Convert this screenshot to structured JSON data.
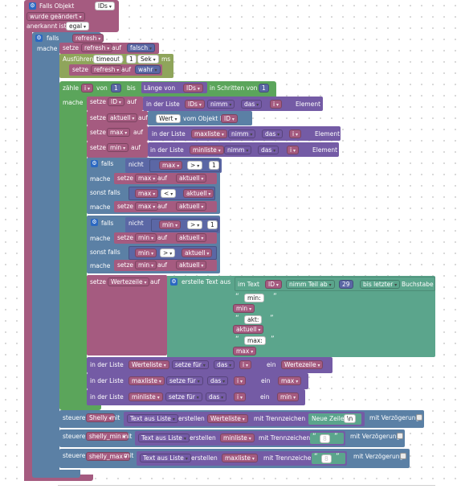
{
  "colors": {
    "event": "#a55b80",
    "control": "#5b80a5",
    "logic": "#5b67a5",
    "variable": "#a55b80",
    "timeout": "#8fa55b",
    "loop": "#5ba55b",
    "list": "#745ba5",
    "text": "#5ba58c",
    "value_yellow": "#f0e4a0",
    "value_red": "#e8b4b4"
  },
  "blocks": {
    "trigger": {
      "title": "Falls Objekt",
      "ids": "IDs",
      "changed": "wurde geändert",
      "ack_prefix": "anerkannt ist",
      "ack_value": "egal"
    },
    "if_refresh": {
      "keyword": "falls",
      "var": "refresh",
      "do": "mache"
    },
    "set_refresh_false": {
      "set": "setze",
      "var": "refresh",
      "to": "auf",
      "value": "falsch"
    },
    "timeout": {
      "run": "Ausführen",
      "name": "timeout",
      "in": "in",
      "amount": "1",
      "unit": "Sek",
      "ms": "ms"
    },
    "set_refresh_true": {
      "set": "setze",
      "var": "refresh",
      "to": "auf",
      "value": "wahr"
    },
    "count": {
      "count": "zähle",
      "var": "i",
      "from": "von",
      "start": "1",
      "to": "bis",
      "length_label": "Länge von",
      "list": "IDs",
      "step_label": "in Schritten von",
      "step": "1",
      "do": "mache"
    },
    "set_ID": {
      "set": "setze",
      "var": "ID",
      "to": "auf",
      "in_list": "in der Liste",
      "list": "IDs",
      "take": "nimm",
      "which": "das",
      "idx": "i",
      "element": "Element"
    },
    "set_aktuell": {
      "set": "setze",
      "var": "aktuell",
      "to": "auf",
      "value_label": "Wert",
      "object_label": "vom Objekt ID",
      "id": "ID"
    },
    "set_max": {
      "set": "setze",
      "var": "max",
      "to": "auf",
      "in_list": "in der Liste",
      "list": "maxliste",
      "take": "nimm",
      "which": "das",
      "idx": "i",
      "element": "Element"
    },
    "set_min": {
      "set": "setze",
      "var": "min",
      "to": "auf",
      "in_list": "in der Liste",
      "list": "minliste",
      "take": "nimm",
      "which": "das",
      "idx": "i",
      "element": "Element"
    },
    "if_max": {
      "keyword": "falls",
      "not": "nicht",
      "var": "max",
      "op": ">",
      "num": "1",
      "do": "mache",
      "set_var": "max",
      "set_val": "aktuell",
      "elseif": "sonst falls",
      "cmp_a": "max",
      "cmp_op": "<",
      "cmp_b": "aktuell",
      "do2": "mache",
      "set2_var": "max",
      "set2_val": "aktuell",
      "set": "setze",
      "to": "auf"
    },
    "if_min": {
      "keyword": "falls",
      "not": "nicht",
      "var": "min",
      "op": ">",
      "num": "1",
      "do": "mache",
      "set_var": "min",
      "set_val": "aktuell",
      "elseif": "sonst falls",
      "cmp_a": "min",
      "cmp_op": ">",
      "cmp_b": "aktuell",
      "do2": "mache",
      "set2_var": "min",
      "set2_val": "aktuell",
      "set": "setze",
      "to": "auf"
    },
    "set_wertezeile": {
      "set": "setze",
      "var": "Wertezeile",
      "to": "auf",
      "create": "erstelle Text aus",
      "in_text": "im Text",
      "id": "ID",
      "take_part": "nimm Teil ab",
      "from_n": "29",
      "until": "bis letzter",
      "char": "Buchstabe",
      "s_min": "min:",
      "v_min": "min",
      "s_akt": "akt:",
      "v_akt": "aktuell",
      "s_max": "max:",
      "v_max": "max"
    },
    "list_set_1": {
      "in_list": "in der Liste",
      "list": "Werteliste",
      "set_for": "setze für",
      "which": "das",
      "idx": "i",
      "a": "ein",
      "value": "Wertezeile"
    },
    "list_set_2": {
      "in_list": "in der Liste",
      "list": "maxliste",
      "set_for": "setze für",
      "which": "das",
      "idx": "i",
      "a": "ein",
      "value": "max"
    },
    "list_set_3": {
      "in_list": "in der Liste",
      "list": "minliste",
      "set_for": "setze für",
      "which": "das",
      "idx": "i",
      "a": "ein",
      "value": "min"
    },
    "control_1": {
      "control": "steuere",
      "target": "Shelly",
      "with": "mit",
      "text_from_list": "Text aus Liste",
      "create": "erstellen",
      "list": "Werteliste",
      "separator": "mit Trennzeichen",
      "sep_value": "Neue Zeile",
      "sep_code": "\\n",
      "delay": "mit Verzögerung"
    },
    "control_2": {
      "control": "steuere",
      "target": "shelly_min",
      "with": "mit",
      "text_from_list": "Text aus Liste",
      "create": "erstellen",
      "list": "minliste",
      "separator": "mit Trennzeichen",
      "sep_value": "8",
      "delay": "mit Verzögerung"
    },
    "control_3": {
      "control": "steuere",
      "target": "shelly_max",
      "with": "mit",
      "text_from_list": "Text aus Liste",
      "create": "erstellen",
      "list": "maxliste",
      "separator": "mit Trennzeichen",
      "sep_value": "8",
      "delay": "mit Verzögerung"
    }
  }
}
